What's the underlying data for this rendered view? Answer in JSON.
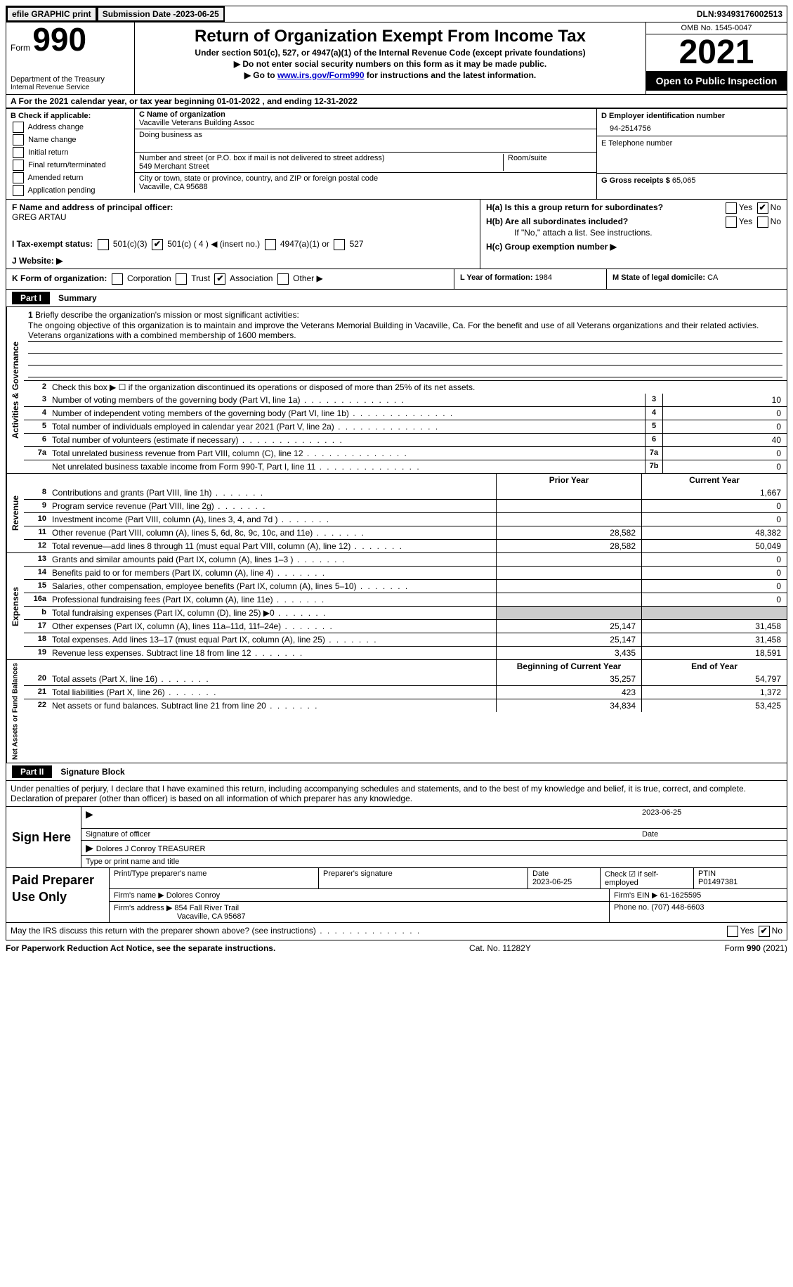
{
  "topbar": {
    "efile": "efile GRAPHIC print",
    "submission_label": "Submission Date - ",
    "submission_date": "2023-06-25",
    "dln_label": "DLN: ",
    "dln": "93493176002513"
  },
  "header": {
    "form_prefix": "Form",
    "form_number": "990",
    "dept": "Department of the Treasury",
    "irs": "Internal Revenue Service",
    "title": "Return of Organization Exempt From Income Tax",
    "subtitle": "Under section 501(c), 527, or 4947(a)(1) of the Internal Revenue Code (except private foundations)",
    "note1": "▶ Do not enter social security numbers on this form as it may be made public.",
    "note2_pre": "▶ Go to ",
    "note2_link": "www.irs.gov/Form990",
    "note2_post": " for instructions and the latest information.",
    "omb": "OMB No. 1545-0047",
    "year": "2021",
    "open": "Open to Public Inspection"
  },
  "lineA": {
    "text_pre": "A For the 2021 calendar year, or tax year beginning ",
    "begin": "01-01-2022",
    "text_mid": " , and ending ",
    "end": "12-31-2022"
  },
  "sectionB": {
    "label": "B Check if applicable:",
    "items": [
      "Address change",
      "Name change",
      "Initial return",
      "Final return/terminated",
      "Amended return",
      "Application pending"
    ]
  },
  "sectionC": {
    "name_label": "C Name of organization",
    "name": "Vacaville Veterans Building Assoc",
    "dba_label": "Doing business as",
    "dba": "",
    "addr_label": "Number and street (or P.O. box if mail is not delivered to street address)",
    "room_label": "Room/suite",
    "addr": "549 Merchant Street",
    "city_label": "City or town, state or province, country, and ZIP or foreign postal code",
    "city": "Vacaville, CA  95688"
  },
  "sectionD": {
    "label": "D Employer identification number",
    "ein": "94-2514756",
    "phone_label": "E Telephone number",
    "phone": "",
    "gross_label": "G Gross receipts $ ",
    "gross": "65,065"
  },
  "sectionF": {
    "label": "F  Name and address of principal officer:",
    "name": "GREG ARTAU"
  },
  "sectionH": {
    "ha_label": "H(a)  Is this a group return for subordinates?",
    "hb_label": "H(b)  Are all subordinates included?",
    "hb_note": "If \"No,\" attach a list. See instructions.",
    "hc_label": "H(c)  Group exemption number ▶",
    "yes": "Yes",
    "no": "No"
  },
  "sectionI": {
    "label": "I    Tax-exempt status:",
    "opt1": "501(c)(3)",
    "opt2": "501(c) ( 4 ) ◀ (insert no.)",
    "opt3": "4947(a)(1) or",
    "opt4": "527"
  },
  "sectionJ": {
    "label": "J   Website: ▶"
  },
  "sectionK": {
    "label": "K Form of organization:",
    "corp": "Corporation",
    "trust": "Trust",
    "assoc": "Association",
    "other": "Other ▶"
  },
  "sectionL": {
    "label": "L Year of formation: ",
    "val": "1984"
  },
  "sectionM": {
    "label": "M State of legal domicile: ",
    "val": "CA"
  },
  "part1": {
    "label": "Part I",
    "title": "Summary",
    "q1_label": "Briefly describe the organization's mission or most significant activities:",
    "q1_text": "The ongoing objective of this organization is to maintain and improve the Veterans Memorial Building in Vacaville, Ca. For the benefit and use of all Veterans organizations and their related activies. Veterans organizations with a combined membership of 1600 members.",
    "q2": "Check this box ▶ ☐ if the organization discontinued its operations or disposed of more than 25% of its net assets.",
    "side_ag": "Activities & Governance",
    "side_rev": "Revenue",
    "side_exp": "Expenses",
    "side_net": "Net Assets or Fund Balances",
    "rows_ag": [
      {
        "n": "3",
        "t": "Number of voting members of the governing body (Part VI, line 1a)",
        "box": "3",
        "v": "10"
      },
      {
        "n": "4",
        "t": "Number of independent voting members of the governing body (Part VI, line 1b)",
        "box": "4",
        "v": "0"
      },
      {
        "n": "5",
        "t": "Total number of individuals employed in calendar year 2021 (Part V, line 2a)",
        "box": "5",
        "v": "0"
      },
      {
        "n": "6",
        "t": "Total number of volunteers (estimate if necessary)",
        "box": "6",
        "v": "40"
      },
      {
        "n": "7a",
        "t": "Total unrelated business revenue from Part VIII, column (C), line 12",
        "box": "7a",
        "v": "0"
      },
      {
        "n": "",
        "t": "Net unrelated business taxable income from Form 990-T, Part I, line 11",
        "box": "7b",
        "v": "0"
      }
    ],
    "col_prior": "Prior Year",
    "col_curr": "Current Year",
    "rows_rev": [
      {
        "n": "8",
        "t": "Contributions and grants (Part VIII, line 1h)",
        "p": "",
        "c": "1,667"
      },
      {
        "n": "9",
        "t": "Program service revenue (Part VIII, line 2g)",
        "p": "",
        "c": "0"
      },
      {
        "n": "10",
        "t": "Investment income (Part VIII, column (A), lines 3, 4, and 7d )",
        "p": "",
        "c": "0"
      },
      {
        "n": "11",
        "t": "Other revenue (Part VIII, column (A), lines 5, 6d, 8c, 9c, 10c, and 11e)",
        "p": "28,582",
        "c": "48,382"
      },
      {
        "n": "12",
        "t": "Total revenue—add lines 8 through 11 (must equal Part VIII, column (A), line 12)",
        "p": "28,582",
        "c": "50,049"
      }
    ],
    "rows_exp": [
      {
        "n": "13",
        "t": "Grants and similar amounts paid (Part IX, column (A), lines 1–3 )",
        "p": "",
        "c": "0"
      },
      {
        "n": "14",
        "t": "Benefits paid to or for members (Part IX, column (A), line 4)",
        "p": "",
        "c": "0"
      },
      {
        "n": "15",
        "t": "Salaries, other compensation, employee benefits (Part IX, column (A), lines 5–10)",
        "p": "",
        "c": "0"
      },
      {
        "n": "16a",
        "t": "Professional fundraising fees (Part IX, column (A), line 11e)",
        "p": "",
        "c": "0"
      },
      {
        "n": "b",
        "t": "Total fundraising expenses (Part IX, column (D), line 25) ▶0",
        "p": "gray",
        "c": "gray"
      },
      {
        "n": "17",
        "t": "Other expenses (Part IX, column (A), lines 11a–11d, 11f–24e)",
        "p": "25,147",
        "c": "31,458"
      },
      {
        "n": "18",
        "t": "Total expenses. Add lines 13–17 (must equal Part IX, column (A), line 25)",
        "p": "25,147",
        "c": "31,458"
      },
      {
        "n": "19",
        "t": "Revenue less expenses. Subtract line 18 from line 12",
        "p": "3,435",
        "c": "18,591"
      }
    ],
    "col_boy": "Beginning of Current Year",
    "col_eoy": "End of Year",
    "rows_net": [
      {
        "n": "20",
        "t": "Total assets (Part X, line 16)",
        "p": "35,257",
        "c": "54,797"
      },
      {
        "n": "21",
        "t": "Total liabilities (Part X, line 26)",
        "p": "423",
        "c": "1,372"
      },
      {
        "n": "22",
        "t": "Net assets or fund balances. Subtract line 21 from line 20",
        "p": "34,834",
        "c": "53,425"
      }
    ]
  },
  "part2": {
    "label": "Part II",
    "title": "Signature Block",
    "penalties": "Under penalties of perjury, I declare that I have examined this return, including accompanying schedules and statements, and to the best of my knowledge and belief, it is true, correct, and complete. Declaration of preparer (other than officer) is based on all information of which preparer has any knowledge."
  },
  "sign": {
    "left": "Sign Here",
    "sig_label": "Signature of officer",
    "date_label": "Date",
    "date": "2023-06-25",
    "name": "Dolores J Conroy TREASURER",
    "name_label": "Type or print name and title"
  },
  "prep": {
    "left": "Paid Preparer Use Only",
    "print_label": "Print/Type preparer's name",
    "sig_label": "Preparer's signature",
    "date_label": "Date",
    "date": "2023-06-25",
    "check_label": "Check ☑ if self-employed",
    "ptin_label": "PTIN",
    "ptin": "P01497381",
    "firm_name_label": "Firm's name    ▶ ",
    "firm_name": "Dolores Conroy",
    "firm_ein_label": "Firm's EIN ▶ ",
    "firm_ein": "61-1625595",
    "firm_addr_label": "Firm's address ▶ ",
    "firm_addr1": "854 Fall River Trail",
    "firm_addr2": "Vacaville, CA  95687",
    "phone_label": "Phone no. ",
    "phone": "(707) 448-6603"
  },
  "discuss": {
    "text": "May the IRS discuss this return with the preparer shown above? (see instructions)",
    "yes": "Yes",
    "no": "No"
  },
  "footer": {
    "left": "For Paperwork Reduction Act Notice, see the separate instructions.",
    "mid": "Cat. No. 11282Y",
    "right": "Form 990 (2021)"
  }
}
